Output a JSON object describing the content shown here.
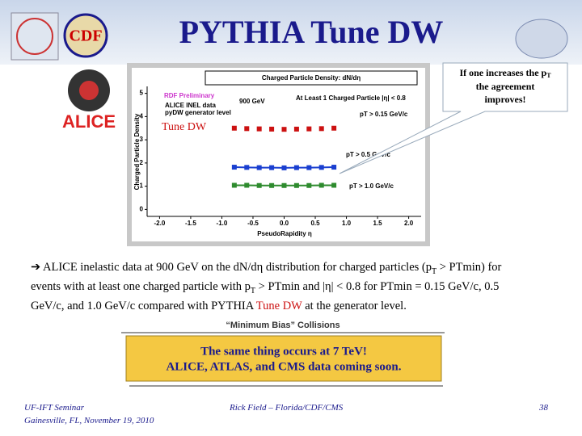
{
  "slide": {
    "title": "PYTHIA Tune DW",
    "logos": {
      "cdf": "CDF",
      "alice": "ALICE"
    },
    "annotation": "Tune DW",
    "callout": [
      "If one increases the p",
      "T",
      "the agreement",
      "improves!"
    ],
    "bullet": [
      "ALICE inelastic data at 900 GeV on the dN/dη distribution for charged particles (p",
      "T",
      " > PTmin) for events with at least one charged particle with p",
      "T",
      " > PTmin and |η| < 0.8 for PTmin = 0.15 GeV/c, 0.5 GeV/c, and 1.0 GeV/c compared with PYTHIA ",
      "Tune DW",
      " at the generator level."
    ],
    "min_bias": "“Minimum Bias” Collisions",
    "box": [
      "The same thing occurs at 7 TeV!",
      "ALICE, ATLAS, and CMS data coming soon."
    ],
    "footer": {
      "seminar": "UF-IFT Seminar",
      "place": "Gainesville, FL,  November 19, 2010",
      "author": "Rick Field – Florida/CDF/CMS",
      "page": "38"
    }
  },
  "chart_data": {
    "type": "scatter",
    "title": "Charged Particle Density: dN/dη",
    "xlabel": "PseudoRapidity η",
    "ylabel": "Charged Particle Density",
    "notes": [
      "RDF Preliminary",
      "ALICE INEL data",
      "pyDW generator level",
      "900 GeV",
      "At Least 1 Charged Particle |η| < 0.8"
    ],
    "x": [
      -0.8,
      -0.6,
      -0.4,
      -0.2,
      0.0,
      0.2,
      0.4,
      0.6,
      0.8
    ],
    "series": [
      {
        "name": "pT > 0.15 GeV/c",
        "color": "#cc1111",
        "line": false,
        "values": [
          3.5,
          3.48,
          3.47,
          3.46,
          3.45,
          3.46,
          3.47,
          3.48,
          3.5
        ]
      },
      {
        "name": "pT > 0.5 GeV/c",
        "color": "#1a3fd0",
        "line": true,
        "values": [
          1.82,
          1.81,
          1.8,
          1.8,
          1.79,
          1.8,
          1.8,
          1.81,
          1.82
        ]
      },
      {
        "name": "pT > 1.0 GeV/c",
        "color": "#2e8b2e",
        "line": true,
        "values": [
          1.04,
          1.04,
          1.03,
          1.03,
          1.03,
          1.03,
          1.03,
          1.04,
          1.04
        ]
      }
    ],
    "xlim": [
      -2.2,
      2.2
    ],
    "ylim": [
      -0.3,
      5.3
    ],
    "xticks": [
      {
        "value": -2,
        "label": "-2.0"
      },
      -1.5,
      {
        "value": -1,
        "label": "-1.0"
      },
      -0.5,
      {
        "value": 0,
        "label": "0.0"
      },
      0.5,
      {
        "value": 1,
        "label": "1.0"
      },
      1.5,
      {
        "value": 2,
        "label": "2.0"
      }
    ],
    "yticks": [
      0,
      1,
      2,
      3,
      4,
      5
    ]
  }
}
